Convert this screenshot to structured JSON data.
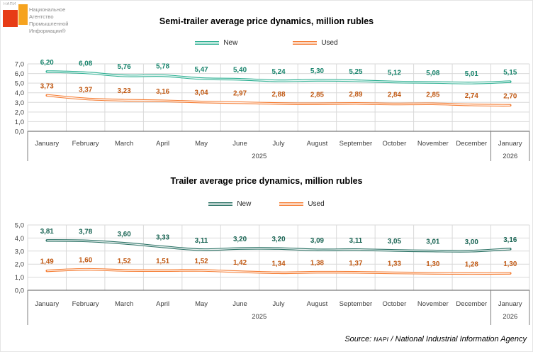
{
  "logo": {
    "brand_small": "НАПИ",
    "lines": [
      "Национальное",
      "Агентство",
      "Промышленной",
      "Информации®"
    ],
    "colors": {
      "red": "#e73c16",
      "orange": "#f6a31f"
    }
  },
  "source": {
    "prefix": "Source:",
    "brand": "NAPI",
    "text": "/ National Industrial Information Agency"
  },
  "chart_data": [
    {
      "type": "line",
      "title": "Semi-trailer average price dynamics, million rubles",
      "categories": [
        "January",
        "February",
        "March",
        "April",
        "May",
        "June",
        "July",
        "August",
        "September",
        "October",
        "November",
        "December",
        "January"
      ],
      "year_groups": [
        {
          "label": "2025",
          "span": 12
        },
        {
          "label": "2026",
          "span": 1
        }
      ],
      "series": [
        {
          "name": "New",
          "values": [
            6.2,
            6.08,
            5.76,
            5.78,
            5.47,
            5.4,
            5.24,
            5.3,
            5.25,
            5.12,
            5.08,
            5.01,
            5.15
          ],
          "line_color": "#2fb093",
          "label_color": "#17836b"
        },
        {
          "name": "Used",
          "values": [
            3.73,
            3.37,
            3.23,
            3.16,
            3.04,
            2.97,
            2.88,
            2.85,
            2.89,
            2.84,
            2.85,
            2.74,
            2.7
          ],
          "line_color": "#f57e35",
          "label_color": "#c05812"
        }
      ],
      "ylim": [
        0,
        7
      ],
      "y_tick_step": 1,
      "grid": true,
      "legend_position": "top",
      "decimal_separator": ",",
      "xlabel": "",
      "ylabel": ""
    },
    {
      "type": "line",
      "title": "Trailer average price dynamics, million rubles",
      "categories": [
        "January",
        "February",
        "March",
        "April",
        "May",
        "June",
        "July",
        "August",
        "September",
        "October",
        "November",
        "December",
        "January"
      ],
      "year_groups": [
        {
          "label": "2025",
          "span": 12
        },
        {
          "label": "2026",
          "span": 1
        }
      ],
      "series": [
        {
          "name": "New",
          "values": [
            3.81,
            3.78,
            3.6,
            3.33,
            3.11,
            3.2,
            3.2,
            3.09,
            3.11,
            3.05,
            3.01,
            3.0,
            3.16
          ],
          "line_color": "#2b7265",
          "label_color": "#176352"
        },
        {
          "name": "Used",
          "values": [
            1.49,
            1.6,
            1.52,
            1.51,
            1.52,
            1.42,
            1.34,
            1.38,
            1.37,
            1.33,
            1.3,
            1.28,
            1.3
          ],
          "line_color": "#f57e35",
          "label_color": "#c05812"
        }
      ],
      "ylim": [
        0,
        5
      ],
      "y_tick_step": 1,
      "grid": true,
      "legend_position": "top",
      "decimal_separator": ",",
      "xlabel": "",
      "ylabel": ""
    }
  ],
  "style": {
    "grid_color": "#d9d9d9",
    "axis_color": "#595959",
    "separator_color": "#7f7f7f",
    "tick_label_color": "#404040"
  }
}
